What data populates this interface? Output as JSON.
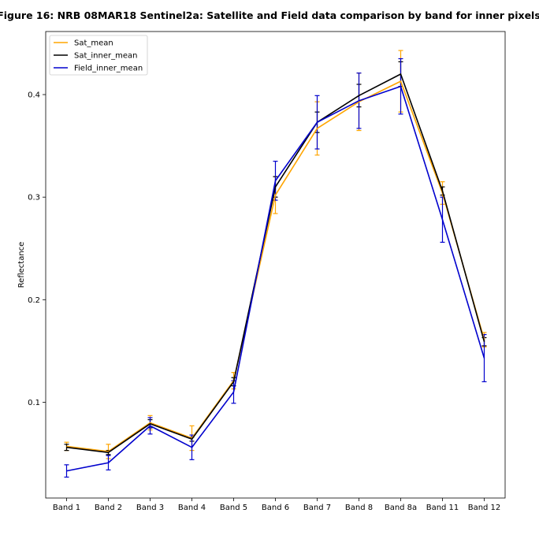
{
  "chart_data": {
    "type": "line",
    "title": "Figure 16: NRB 08MAR18  Sentinel2a: Satellite and Field data comparison by band for inner pixels",
    "xlabel": "",
    "ylabel": "Reflectance",
    "categories": [
      "Band 1",
      "Band 2",
      "Band 3",
      "Band 4",
      "Band 5",
      "Band 6",
      "Band 7",
      "Band 8",
      "Band 8a",
      "Band 11",
      "Band 12"
    ],
    "ylim": [
      0.0066,
      0.4615
    ],
    "yticks": [
      0.1,
      0.2,
      0.3,
      0.4
    ],
    "ytick_labels": [
      "0.1",
      "0.2",
      "0.3",
      "0.4"
    ],
    "grid": false,
    "legend_position": "top-left",
    "series": [
      {
        "name": "Sat_mean",
        "color": "#FFA500",
        "values": [
          0.057,
          0.052,
          0.08,
          0.065,
          0.121,
          0.302,
          0.367,
          0.393,
          0.413,
          0.304,
          0.161
        ],
        "errors": [
          0.004,
          0.007,
          0.007,
          0.012,
          0.008,
          0.018,
          0.026,
          0.028,
          0.03,
          0.011,
          0.007
        ]
      },
      {
        "name": "Sat_inner_mean",
        "color": "#000000",
        "values": [
          0.056,
          0.051,
          0.079,
          0.064,
          0.12,
          0.31,
          0.373,
          0.399,
          0.42,
          0.306,
          0.159
        ],
        "errors": [
          0.003,
          0.002,
          0.004,
          0.002,
          0.004,
          0.01,
          0.01,
          0.011,
          0.012,
          0.004,
          0.004
        ]
      },
      {
        "name": "Field_inner_mean",
        "color": "#0000CD",
        "values": [
          0.033,
          0.041,
          0.077,
          0.056,
          0.11,
          0.316,
          0.373,
          0.394,
          0.408,
          0.278,
          0.143
        ],
        "errors": [
          0.006,
          0.007,
          0.008,
          0.012,
          0.011,
          0.019,
          0.026,
          0.027,
          0.027,
          0.022,
          0.023
        ]
      }
    ]
  }
}
